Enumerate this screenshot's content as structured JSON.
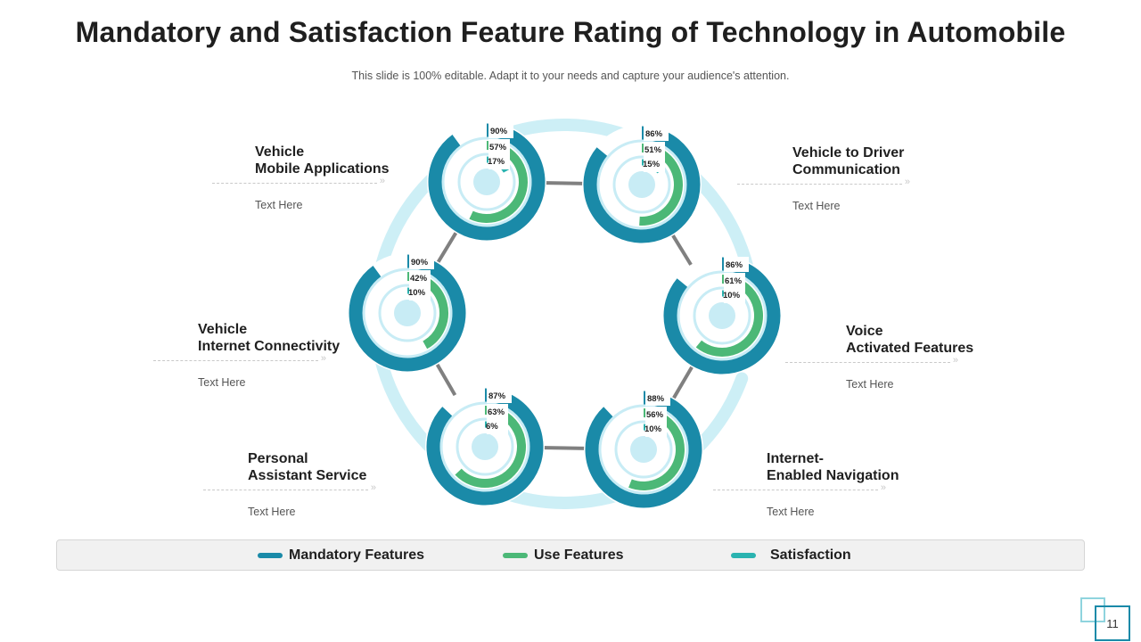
{
  "title": "Mandatory and Satisfaction Feature Rating of Technology in Automobile",
  "subtitle": "This slide is 100% editable. Adapt it to your needs and capture your audience's attention.",
  "colors": {
    "mandatory": "#1a8aa8",
    "use": "#4cb877",
    "satisfaction": "#2ab3b0",
    "center": "#c8ecf5",
    "backdrop": "#cdeff6",
    "connector": "#808080"
  },
  "chart_data": {
    "type": "radial-bar",
    "series_names": [
      "Mandatory Features",
      "Use Features",
      "Satisfaction"
    ],
    "items": [
      {
        "name": "Vehicle Mobile Applications",
        "heading": [
          "Vehicle",
          "Mobile Applications"
        ],
        "text": "Text Here",
        "mandatory": 90,
        "use": 57,
        "satisfaction": 17
      },
      {
        "name": "Vehicle to Driver Communication",
        "heading": [
          "Vehicle to Driver",
          "Communication"
        ],
        "text": "Text Here",
        "mandatory": 86,
        "use": 51,
        "satisfaction": 15
      },
      {
        "name": "Voice Activated Features",
        "heading": [
          "Voice",
          "Activated Features"
        ],
        "text": "Text Here",
        "mandatory": 86,
        "use": 61,
        "satisfaction": 10
      },
      {
        "name": "Internet-Enabled Navigation",
        "heading": [
          "Internet-",
          "Enabled Navigation"
        ],
        "text": "Text Here",
        "mandatory": 88,
        "use": 56,
        "satisfaction": 10
      },
      {
        "name": "Personal Assistant Service",
        "heading": [
          "Personal",
          "Assistant Service"
        ],
        "text": "Text Here",
        "mandatory": 87,
        "use": 63,
        "satisfaction": 6
      },
      {
        "name": "Vehicle Internet Connectivity",
        "heading": [
          "Vehicle",
          "Internet Connectivity"
        ],
        "text": "Text Here",
        "mandatory": 90,
        "use": 42,
        "satisfaction": 10
      }
    ]
  },
  "legend": [
    {
      "label": "Mandatory Features",
      "color": "#1a8aa8"
    },
    {
      "label": "Use Features",
      "color": "#4cb877"
    },
    {
      "label": "Satisfaction",
      "color": "#2ab3b0"
    }
  ],
  "page_number": "11"
}
